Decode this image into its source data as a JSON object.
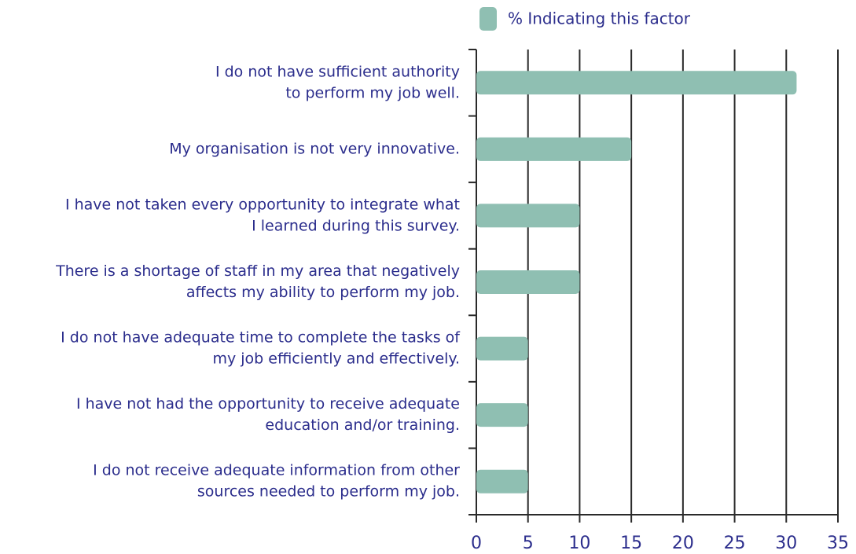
{
  "chart_data": {
    "type": "barh",
    "categories": [
      [
        "I do not have sufficient authority",
        "to perform my job well."
      ],
      [
        "My organisation is not very innovative."
      ],
      [
        "I have not taken every opportunity to integrate what",
        "I learned during this survey."
      ],
      [
        "There is a shortage of staff in my area that negatively",
        "affects my ability to perform my job."
      ],
      [
        "I do not have adequate time to complete the tasks of",
        "my job efficiently and effectively."
      ],
      [
        "I have not had the opportunity to receive adequate",
        "education and/or training."
      ],
      [
        "I do not receive adequate information from other",
        "sources needed to perform my job."
      ]
    ],
    "series": [
      {
        "name": "% Indicating this factor",
        "color": "#8fbfb2",
        "values": [
          31,
          15,
          10,
          10,
          5,
          5,
          5
        ]
      }
    ],
    "xlim": [
      0,
      35
    ],
    "xticks": [
      0,
      5,
      10,
      15,
      20,
      25,
      30,
      35
    ],
    "grid": true,
    "legend": "top"
  }
}
